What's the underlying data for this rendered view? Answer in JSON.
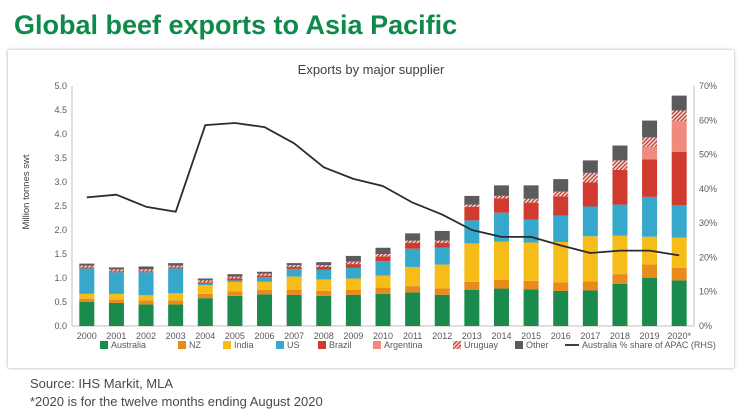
{
  "page": {
    "title": "Global beef exports to Asia Pacific",
    "source": "Source: IHS Markit, MLA",
    "note": "*2020 is for the twelve months ending August 2020"
  },
  "chart_data": {
    "type": "bar",
    "stacked": true,
    "title": "Exports by major supplier",
    "ylabel": "Million tonnes swt",
    "ylim": [
      0,
      5
    ],
    "y_ticks": [
      "0.0",
      "0.5",
      "1.0",
      "1.5",
      "2.0",
      "2.5",
      "3.0",
      "3.5",
      "4.0",
      "4.5",
      "5.0"
    ],
    "y2lim": [
      0,
      70
    ],
    "y2_ticks": [
      "0%",
      "10%",
      "20%",
      "30%",
      "40%",
      "50%",
      "60%",
      "70%"
    ],
    "categories": [
      "2000",
      "2001",
      "2002",
      "2003",
      "2004",
      "2005",
      "2006",
      "2007",
      "2008",
      "2009",
      "2010",
      "2011",
      "2012",
      "2013",
      "2014",
      "2015",
      "2016",
      "2017",
      "2018",
      "2019",
      "2020*"
    ],
    "series": [
      {
        "name": "Australia",
        "color": "#1b8a4d",
        "pattern": "solid",
        "values": [
          0.5,
          0.48,
          0.45,
          0.45,
          0.58,
          0.63,
          0.66,
          0.65,
          0.63,
          0.65,
          0.67,
          0.7,
          0.65,
          0.75,
          0.78,
          0.76,
          0.73,
          0.74,
          0.88,
          1.0,
          0.95
        ]
      },
      {
        "name": "NZ",
        "color": "#e88a1c",
        "pattern": "solid",
        "values": [
          0.07,
          0.07,
          0.08,
          0.08,
          0.09,
          0.09,
          0.09,
          0.1,
          0.1,
          0.1,
          0.13,
          0.13,
          0.13,
          0.17,
          0.18,
          0.18,
          0.18,
          0.19,
          0.2,
          0.28,
          0.26
        ]
      },
      {
        "name": "India",
        "color": "#f6bd19",
        "pattern": "solid",
        "values": [
          0.1,
          0.12,
          0.11,
          0.15,
          0.18,
          0.2,
          0.17,
          0.28,
          0.24,
          0.24,
          0.25,
          0.4,
          0.5,
          0.8,
          0.8,
          0.8,
          0.84,
          0.94,
          0.8,
          0.58,
          0.63
        ]
      },
      {
        "name": "US",
        "color": "#35a8cc",
        "pattern": "solid",
        "values": [
          0.53,
          0.45,
          0.48,
          0.52,
          0.03,
          0.03,
          0.1,
          0.16,
          0.2,
          0.22,
          0.3,
          0.38,
          0.35,
          0.48,
          0.6,
          0.48,
          0.55,
          0.62,
          0.65,
          0.83,
          0.68
        ]
      },
      {
        "name": "Brazil",
        "color": "#d03a2f",
        "pattern": "solid",
        "values": [
          0.02,
          0.02,
          0.02,
          0.02,
          0.03,
          0.04,
          0.03,
          0.04,
          0.06,
          0.08,
          0.1,
          0.12,
          0.1,
          0.28,
          0.3,
          0.35,
          0.4,
          0.5,
          0.72,
          0.78,
          1.11
        ]
      },
      {
        "name": "Argentina",
        "color": "#f08a7e",
        "pattern": "solid",
        "values": [
          0,
          0,
          0,
          0,
          0,
          0,
          0,
          0,
          0,
          0,
          0,
          0,
          0,
          0,
          0,
          0,
          0,
          0,
          0,
          0.26,
          0.64
        ]
      },
      {
        "name": "Uruguay",
        "color": "#c0392b",
        "pattern": "hatch",
        "values": [
          0.04,
          0.04,
          0.04,
          0.04,
          0.04,
          0.04,
          0.04,
          0.04,
          0.04,
          0.05,
          0.05,
          0.05,
          0.05,
          0.05,
          0.05,
          0.08,
          0.1,
          0.2,
          0.2,
          0.2,
          0.22
        ]
      },
      {
        "name": "Other",
        "color": "#5b5b5b",
        "pattern": "solid",
        "values": [
          0.04,
          0.04,
          0.06,
          0.05,
          0.04,
          0.05,
          0.04,
          0.04,
          0.06,
          0.12,
          0.13,
          0.15,
          0.2,
          0.18,
          0.22,
          0.28,
          0.26,
          0.26,
          0.31,
          0.35,
          0.31
        ]
      }
    ],
    "line_series": {
      "name": "Australia % share of APAC (RHS)",
      "axis": "right",
      "color": "#2b2b2b",
      "values": [
        37.5,
        38.3,
        34.8,
        33.3,
        58.6,
        59.2,
        58.0,
        53.3,
        46.3,
        42.9,
        40.8,
        36.0,
        32.5,
        28.0,
        26.0,
        26.0,
        23.5,
        21.3,
        22.0,
        22.0,
        20.6
      ]
    },
    "grid": false,
    "legend": "bottom"
  }
}
